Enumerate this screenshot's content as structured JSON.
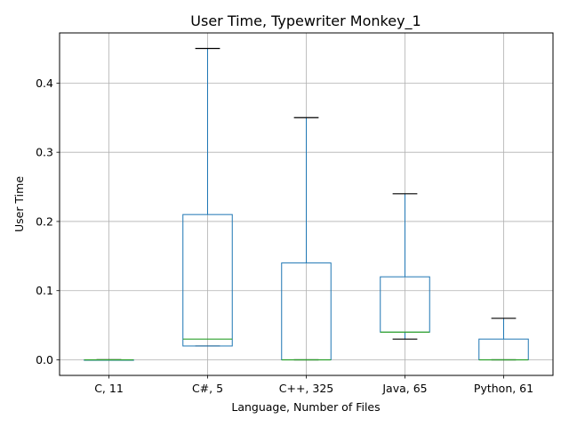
{
  "chart_data": {
    "type": "box",
    "title": "User Time, Typewriter Monkey_1",
    "xlabel": "Language, Number of Files",
    "ylabel": "User Time",
    "ylim": [
      -0.0225,
      0.4725
    ],
    "yticks": [
      0.0,
      0.1,
      0.2,
      0.3,
      0.4
    ],
    "ytick_labels": [
      "0.0",
      "0.1",
      "0.2",
      "0.3",
      "0.4"
    ],
    "grid": true,
    "categories": [
      "C, 11",
      "C#, 5",
      "C++, 325",
      "Java, 65",
      "Python, 61"
    ],
    "boxes": [
      {
        "category": "C, 11",
        "whislo": 0.0,
        "q1": 0.0,
        "median": 0.0,
        "q3": 0.0,
        "whishi": 0.0
      },
      {
        "category": "C#, 5",
        "whislo": 0.02,
        "q1": 0.02,
        "median": 0.03,
        "q3": 0.21,
        "whishi": 0.45
      },
      {
        "category": "C++, 325",
        "whislo": 0.0,
        "q1": 0.0,
        "median": 0.0,
        "q3": 0.14,
        "whishi": 0.35
      },
      {
        "category": "Java, 65",
        "whislo": 0.03,
        "q1": 0.04,
        "median": 0.04,
        "q3": 0.12,
        "whishi": 0.24
      },
      {
        "category": "Python, 61",
        "whislo": 0.0,
        "q1": 0.0,
        "median": 0.0,
        "q3": 0.03,
        "whishi": 0.06
      }
    ],
    "colors": {
      "box": "#1f77b4",
      "median": "#2ca02c",
      "cap": "#000000",
      "grid": "#b0b0b0",
      "axes": "#000000"
    }
  }
}
